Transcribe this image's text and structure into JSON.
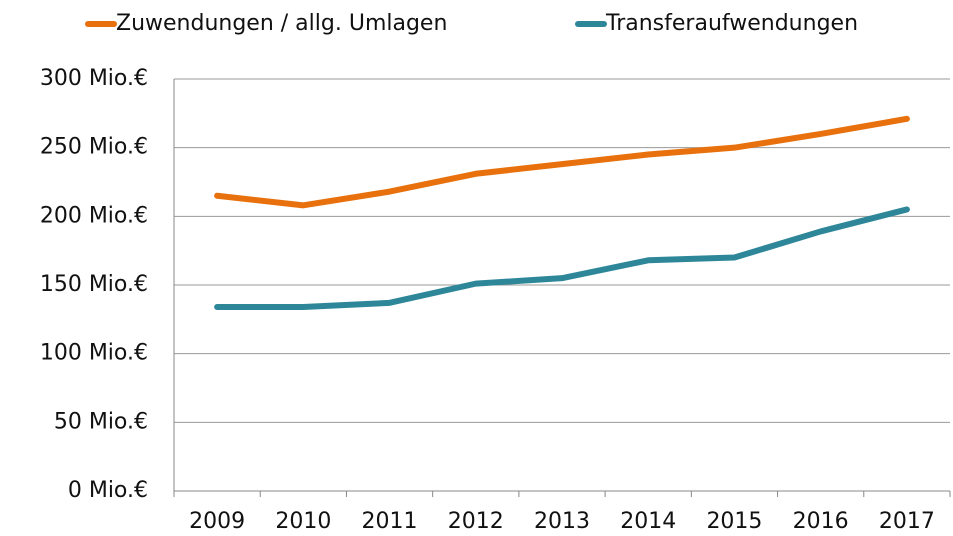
{
  "chart_data": {
    "type": "line",
    "categories": [
      "2009",
      "2010",
      "2011",
      "2012",
      "2013",
      "2014",
      "2015",
      "2016",
      "2017"
    ],
    "series": [
      {
        "name": "Zuwendungen / allg. Umlagen",
        "color": "#e8710d",
        "values": [
          215,
          208,
          218,
          231,
          238,
          245,
          250,
          260,
          271
        ]
      },
      {
        "name": "Transferaufwendungen",
        "color": "#2e8799",
        "values": [
          134,
          134,
          137,
          151,
          155,
          168,
          170,
          189,
          205
        ]
      }
    ],
    "ylim": [
      0,
      300
    ],
    "yticks": [
      {
        "value": 0,
        "label": "0 Mio.€"
      },
      {
        "value": 50,
        "label": "50 Mio.€"
      },
      {
        "value": 100,
        "label": "100 Mio.€"
      },
      {
        "value": 150,
        "label": "150 Mio.€"
      },
      {
        "value": 200,
        "label": "200 Mio.€"
      },
      {
        "value": 250,
        "label": "250 Mio.€"
      },
      {
        "value": 300,
        "label": "300 Mio.€"
      }
    ],
    "grid": true,
    "legend": "top"
  }
}
